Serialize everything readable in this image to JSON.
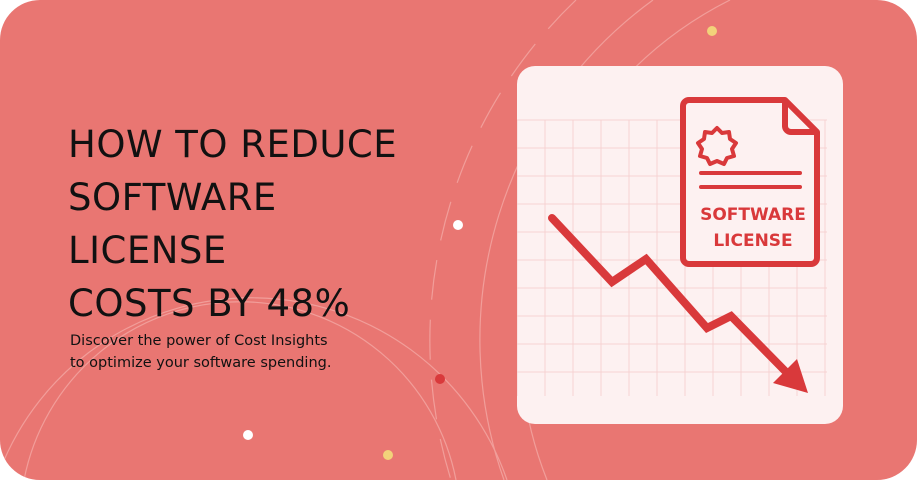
{
  "headline": [
    "HOW TO REDUCE",
    "SOFTWARE",
    "LICENSE",
    "COSTS BY 48%"
  ],
  "subheading": [
    "Discover the power of Cost Insights",
    "to optimize your software spending."
  ],
  "illustration": {
    "document_label": [
      "SOFTWARE",
      "LICENSE"
    ],
    "icons": [
      "badge-seal-icon",
      "trend-down-arrow-icon",
      "document-icon"
    ]
  },
  "colors": {
    "background": "#E97672",
    "card": "#FDF1F1",
    "accent": "#D9393B",
    "text": "#111111"
  }
}
